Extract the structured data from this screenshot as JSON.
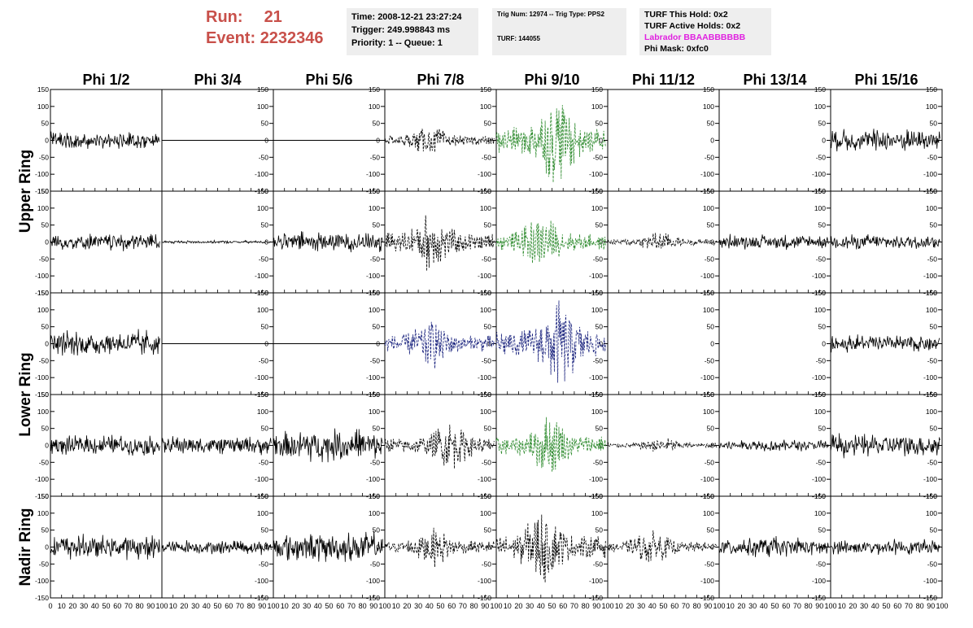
{
  "header": {
    "run_label": "Run:",
    "run_value": "21",
    "event_label": "Event:",
    "event_value": "2232346"
  },
  "info_time": {
    "time": "Time: 2008-12-21 23:27:24",
    "trigger": "Trigger: 249.998843 ms",
    "priority": "Priority: 1 -- Queue: 1"
  },
  "info_trig": {
    "trig": "Trig Num: 12974 -- Trig Type: PPS2",
    "turf": "TURF: 144055"
  },
  "info_turf": {
    "this_hold": "TURF This Hold: 0x2",
    "active_holds": "TURF Active Holds: 0x2",
    "labrador": "Labrador BBAABBBBBB",
    "phi_mask": "Phi Mask: 0xfc0"
  },
  "colors": {
    "trace_default": "#000000",
    "trace_green": "#2e8b2e",
    "trace_blue": "#1a237e",
    "header_red": "#c8504a",
    "labrador_magenta": "#e020e0"
  },
  "chart_data": {
    "type": "line",
    "columns": [
      "Phi 1/2",
      "Phi 3/4",
      "Phi 5/6",
      "Phi 7/8",
      "Phi 9/10",
      "Phi 11/12",
      "Phi 13/14",
      "Phi 15/16"
    ],
    "rings": [
      "Upper Ring",
      "Lower Ring",
      "Nadir Ring"
    ],
    "xlim": [
      0,
      100
    ],
    "xticks": [
      "0",
      "10",
      "20",
      "30",
      "40",
      "50",
      "60",
      "70",
      "80",
      "90",
      "100"
    ],
    "ylim": [
      -150,
      150
    ],
    "yticks": [
      "150",
      "100",
      "50",
      "0",
      "-50",
      "-100",
      "-150"
    ],
    "rows": [
      {
        "ring": "Upper Ring",
        "panels": [
          {
            "amp": 28,
            "style": "solid",
            "color": "black"
          },
          {
            "amp": 0,
            "style": "solid",
            "color": "black"
          },
          {
            "amp": 0,
            "style": "solid",
            "color": "black"
          },
          {
            "amp": 45,
            "style": "dashed",
            "color": "black"
          },
          {
            "amp": 130,
            "style": "dashed",
            "color": "green"
          },
          {
            "amp": 0,
            "style": "none",
            "color": "black"
          },
          {
            "amp": 0,
            "style": "none",
            "color": "black"
          },
          {
            "amp": 40,
            "style": "solid",
            "color": "black"
          }
        ]
      },
      {
        "ring": "Upper Ring",
        "panels": [
          {
            "amp": 30,
            "style": "solid",
            "color": "black"
          },
          {
            "amp": 5,
            "style": "solid",
            "color": "black"
          },
          {
            "amp": 35,
            "style": "solid",
            "color": "black"
          },
          {
            "amp": 90,
            "style": "dashed",
            "color": "black"
          },
          {
            "amp": 80,
            "style": "dashed",
            "color": "green"
          },
          {
            "amp": 30,
            "style": "dashed",
            "color": "black"
          },
          {
            "amp": 25,
            "style": "solid",
            "color": "black"
          },
          {
            "amp": 25,
            "style": "solid",
            "color": "black"
          }
        ]
      },
      {
        "ring": "Lower Ring",
        "panels": [
          {
            "amp": 45,
            "style": "solid",
            "color": "black"
          },
          {
            "amp": 0,
            "style": "solid",
            "color": "black"
          },
          {
            "amp": 0,
            "style": "solid",
            "color": "black"
          },
          {
            "amp": 80,
            "style": "dashed",
            "color": "blue"
          },
          {
            "amp": 130,
            "style": "dashed",
            "color": "blue"
          },
          {
            "amp": 0,
            "style": "none",
            "color": "black"
          },
          {
            "amp": 0,
            "style": "none",
            "color": "black"
          },
          {
            "amp": 30,
            "style": "solid",
            "color": "black"
          }
        ]
      },
      {
        "ring": "Lower Ring",
        "panels": [
          {
            "amp": 35,
            "style": "solid",
            "color": "black"
          },
          {
            "amp": 30,
            "style": "solid",
            "color": "black"
          },
          {
            "amp": 55,
            "style": "solid",
            "color": "black"
          },
          {
            "amp": 75,
            "style": "dashed",
            "color": "black"
          },
          {
            "amp": 95,
            "style": "dashed",
            "color": "green"
          },
          {
            "amp": 25,
            "style": "dashed",
            "color": "black"
          },
          {
            "amp": 20,
            "style": "solid",
            "color": "black"
          },
          {
            "amp": 40,
            "style": "solid",
            "color": "black"
          }
        ]
      },
      {
        "ring": "Nadir Ring",
        "panels": [
          {
            "amp": 40,
            "style": "solid",
            "color": "black"
          },
          {
            "amp": 25,
            "style": "solid",
            "color": "black"
          },
          {
            "amp": 50,
            "style": "solid",
            "color": "black"
          },
          {
            "amp": 60,
            "style": "dashed",
            "color": "black"
          },
          {
            "amp": 110,
            "style": "dashed",
            "color": "black"
          },
          {
            "amp": 50,
            "style": "dashed",
            "color": "black"
          },
          {
            "amp": 35,
            "style": "solid",
            "color": "black"
          },
          {
            "amp": 25,
            "style": "solid",
            "color": "black"
          }
        ]
      }
    ]
  }
}
